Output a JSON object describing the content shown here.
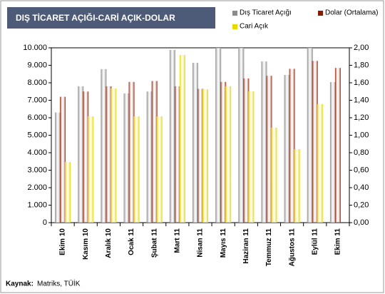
{
  "chart_data": {
    "type": "bar",
    "title": "DIŞ TİCARET AÇIĞI-CARİ AÇIK-DOLAR",
    "source_label": "Kaynak:",
    "source": "Matriks, TÜİK",
    "categories": [
      "Ekim 10",
      "Kasım 10",
      "Aralık 10",
      "Ocak 11",
      "Şubat 11",
      "Mart 11",
      "Nisan 11",
      "Mayıs 11",
      "Haziran 11",
      "Temmuz 11",
      "Ağustos 11",
      "Eylül 11",
      "Ekim 11"
    ],
    "series": [
      {
        "name": "Dış Ticaret Açığı",
        "color": "#8c8c8c",
        "values": [
          6300,
          7800,
          8780,
          7390,
          7500,
          9880,
          9140,
          10000,
          10000,
          9220,
          8450,
          10000,
          8040
        ]
      },
      {
        "name": "Dolar (Ortalama)",
        "color": "#8b1a00",
        "axis": "y2",
        "values": [
          1.44,
          1.5,
          1.56,
          1.61,
          1.62,
          1.56,
          1.53,
          1.61,
          1.65,
          1.68,
          1.76,
          1.85,
          1.77
        ]
      },
      {
        "name": "Cari Açık",
        "color": "#e6d800",
        "values": [
          3470,
          6080,
          7670,
          6080,
          6080,
          9590,
          7630,
          7800,
          7510,
          5430,
          4200,
          6780,
          null
        ]
      }
    ],
    "ylim": [
      0,
      10000
    ],
    "yticks": [
      0,
      {
        "value": 1000,
        "label": "1.000"
      },
      {
        "value": 2000,
        "label": "2.000"
      },
      {
        "value": 3000,
        "label": "3.000"
      },
      {
        "value": 4000,
        "label": "4.000"
      },
      {
        "value": 5000,
        "label": "5.000"
      },
      {
        "value": 6000,
        "label": "6.000"
      },
      {
        "value": 7000,
        "label": "7.000"
      },
      {
        "value": 8000,
        "label": "8.000"
      },
      {
        "value": 9000,
        "label": "9.000"
      },
      {
        "value": 10000,
        "label": "10.000"
      }
    ],
    "y2lim": [
      0,
      2
    ],
    "y2ticks": [
      {
        "value": 0,
        "label": "0,00"
      },
      {
        "value": 0.2,
        "label": "0,20"
      },
      {
        "value": 0.4,
        "label": "0,40"
      },
      {
        "value": 0.6,
        "label": "0,60"
      },
      {
        "value": 0.8,
        "label": "0,80"
      },
      {
        "value": 1,
        "label": "1,00"
      },
      {
        "value": 1.2,
        "label": "1,20"
      },
      {
        "value": 1.4,
        "label": "1,40"
      },
      {
        "value": 1.6,
        "label": "1,60"
      },
      {
        "value": 1.8,
        "label": "1,80"
      },
      {
        "value": 2,
        "label": "2,00"
      }
    ],
    "grid": false
  }
}
